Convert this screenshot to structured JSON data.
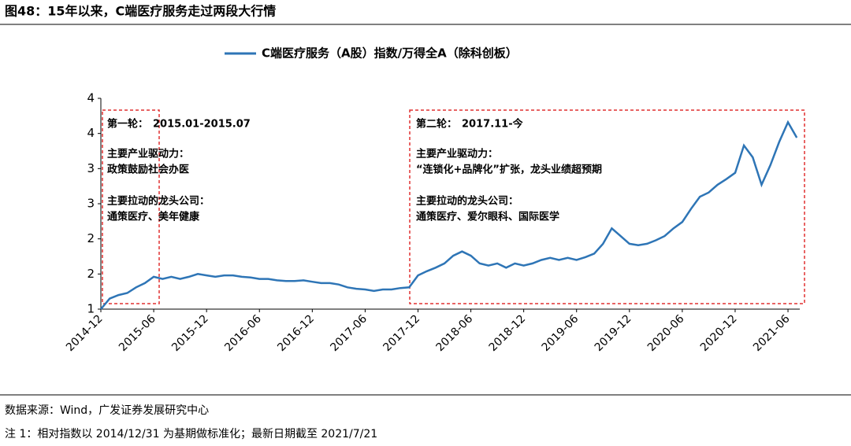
{
  "chart_data": {
    "type": "line",
    "title": "图48：15年以来，C端医疗服务走过两段大行情",
    "x": [
      "2014-12",
      "2015-01",
      "2015-02",
      "2015-03",
      "2015-04",
      "2015-05",
      "2015-06",
      "2015-07",
      "2015-08",
      "2015-09",
      "2015-10",
      "2015-11",
      "2015-12",
      "2016-01",
      "2016-02",
      "2016-03",
      "2016-04",
      "2016-05",
      "2016-06",
      "2016-07",
      "2016-08",
      "2016-09",
      "2016-10",
      "2016-11",
      "2016-12",
      "2017-01",
      "2017-02",
      "2017-03",
      "2017-04",
      "2017-05",
      "2017-06",
      "2017-07",
      "2017-08",
      "2017-09",
      "2017-10",
      "2017-11",
      "2017-12",
      "2018-01",
      "2018-02",
      "2018-03",
      "2018-04",
      "2018-05",
      "2018-06",
      "2018-07",
      "2018-08",
      "2018-09",
      "2018-10",
      "2018-11",
      "2018-12",
      "2019-01",
      "2019-02",
      "2019-03",
      "2019-04",
      "2019-05",
      "2019-06",
      "2019-07",
      "2019-08",
      "2019-09",
      "2019-10",
      "2019-11",
      "2019-12",
      "2020-01",
      "2020-02",
      "2020-03",
      "2020-04",
      "2020-05",
      "2020-06",
      "2020-07",
      "2020-08",
      "2020-09",
      "2020-10",
      "2020-11",
      "2020-12",
      "2021-01",
      "2021-02",
      "2021-03",
      "2021-04",
      "2021-05",
      "2021-06",
      "2021-07"
    ],
    "series": [
      {
        "name": "C端医疗服务（A股）指数/万得全A（除科创板）",
        "color": "#2e75b6",
        "values": [
          1.0,
          1.15,
          1.2,
          1.23,
          1.31,
          1.37,
          1.46,
          1.43,
          1.46,
          1.43,
          1.46,
          1.5,
          1.48,
          1.46,
          1.48,
          1.48,
          1.46,
          1.45,
          1.43,
          1.43,
          1.41,
          1.4,
          1.4,
          1.41,
          1.39,
          1.37,
          1.37,
          1.35,
          1.31,
          1.29,
          1.28,
          1.26,
          1.28,
          1.28,
          1.3,
          1.31,
          1.48,
          1.54,
          1.59,
          1.65,
          1.76,
          1.82,
          1.76,
          1.65,
          1.62,
          1.65,
          1.59,
          1.65,
          1.62,
          1.65,
          1.7,
          1.73,
          1.7,
          1.73,
          1.7,
          1.74,
          1.79,
          1.93,
          2.15,
          2.04,
          1.93,
          1.91,
          1.93,
          1.98,
          2.04,
          2.15,
          2.24,
          2.43,
          2.6,
          2.66,
          2.77,
          2.85,
          2.94,
          3.33,
          3.16,
          2.77,
          3.05,
          3.38,
          3.66,
          3.44
        ]
      }
    ],
    "ylim": [
      1,
      4
    ],
    "yticks": [
      1,
      {
        "value": 1.5,
        "label": "2"
      },
      2,
      {
        "value": 2.5,
        "label": "3"
      },
      3,
      {
        "value": 3.5,
        "label": "4"
      },
      4
    ],
    "xticks": [
      "2014-12",
      "2015-06",
      "2015-12",
      "2016-06",
      "2016-12",
      "2017-06",
      "2017-12",
      "2018-06",
      "2018-12",
      "2019-06",
      "2019-12",
      "2020-06",
      "2020-12",
      "2021-06"
    ],
    "annotations": [
      {
        "heading": "第一轮：",
        "period": "2015.01-2015.07",
        "driver_label": "主要产业驱动力：",
        "driver": "政策鼓励社会办医",
        "leader_label": "主要拉动的龙头公司：",
        "leaders": "通策医疗、美年健康"
      },
      {
        "heading": "第二轮：",
        "period": "2017.11-今",
        "driver_label": "主要产业驱动力：",
        "driver": "“连锁化+品牌化”扩张，龙头业绩超预期",
        "leader_label": "主要拉动的龙头公司：",
        "leaders": "通策医疗、爱尔眼科、国际医学"
      }
    ],
    "notes": [
      "数据来源：Wind，广发证券发展研究中心",
      "注 1：相对指数以 2014/12/31 为基期做标准化；最新日期截至 2021/7/21"
    ]
  }
}
